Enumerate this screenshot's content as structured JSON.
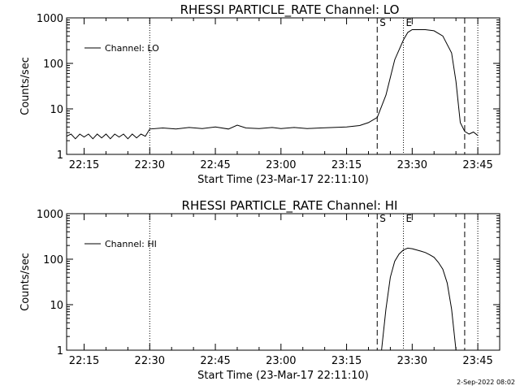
{
  "footer_date": "2-Sep-2022 08:02",
  "chart_data": [
    {
      "type": "line",
      "title": "RHESSI PARTICLE_RATE Channel: LO",
      "xlabel": "Start Time (23-Mar-17 22:11:10)",
      "ylabel": "Counts/sec",
      "y_scale": "log",
      "ylim": [
        1,
        1000
      ],
      "xlim": [
        "22:11",
        "23:50"
      ],
      "x_ticks": [
        "22:15",
        "22:30",
        "22:45",
        "23:00",
        "23:15",
        "23:30",
        "23:45"
      ],
      "y_ticks": [
        "1",
        "10",
        "100",
        "1000"
      ],
      "legend": "top-left",
      "series": [
        {
          "name": "Channel: LO",
          "points": [
            [
              "22:11",
              2.5
            ],
            [
              "22:12",
              2.8
            ],
            [
              "22:13",
              2.2
            ],
            [
              "22:14",
              2.8
            ],
            [
              "22:15",
              2.4
            ],
            [
              "22:16",
              2.8
            ],
            [
              "22:17",
              2.2
            ],
            [
              "22:18",
              2.8
            ],
            [
              "22:19",
              2.3
            ],
            [
              "22:20",
              2.8
            ],
            [
              "22:21",
              2.2
            ],
            [
              "22:22",
              2.8
            ],
            [
              "22:23",
              2.4
            ],
            [
              "22:24",
              2.8
            ],
            [
              "22:25",
              2.2
            ],
            [
              "22:26",
              2.8
            ],
            [
              "22:27",
              2.3
            ],
            [
              "22:28",
              2.8
            ],
            [
              "22:29",
              2.5
            ],
            [
              "22:30",
              3.6
            ],
            [
              "22:33",
              3.8
            ],
            [
              "22:36",
              3.6
            ],
            [
              "22:39",
              3.9
            ],
            [
              "22:42",
              3.7
            ],
            [
              "22:45",
              4.0
            ],
            [
              "22:48",
              3.6
            ],
            [
              "22:50",
              4.4
            ],
            [
              "22:52",
              3.8
            ],
            [
              "22:55",
              3.7
            ],
            [
              "22:58",
              3.9
            ],
            [
              "23:00",
              3.7
            ],
            [
              "23:03",
              3.9
            ],
            [
              "23:06",
              3.7
            ],
            [
              "23:09",
              3.8
            ],
            [
              "23:12",
              3.9
            ],
            [
              "23:15",
              4.0
            ],
            [
              "23:18",
              4.3
            ],
            [
              "23:20",
              5.0
            ],
            [
              "23:22",
              6.5
            ],
            [
              "23:24",
              20
            ],
            [
              "23:26",
              120
            ],
            [
              "23:28",
              330
            ],
            [
              "23:29",
              480
            ],
            [
              "23:30",
              550
            ],
            [
              "23:33",
              550
            ],
            [
              "23:35",
              520
            ],
            [
              "23:37",
              400
            ],
            [
              "23:39",
              170
            ],
            [
              "23:40",
              40
            ],
            [
              "23:41",
              5
            ],
            [
              "23:42",
              3.2
            ],
            [
              "23:43",
              2.8
            ],
            [
              "23:44",
              3.1
            ],
            [
              "23:45",
              2.6
            ]
          ]
        }
      ],
      "markers": [
        {
          "label": "S",
          "x": "23:22",
          "style": "dashed"
        },
        {
          "label": "E",
          "x": "23:28",
          "style": "dotted"
        },
        {
          "label": "",
          "x": "23:42",
          "style": "dashed"
        },
        {
          "label": "",
          "x": "22:30",
          "style": "dotted"
        },
        {
          "label": "",
          "x": "23:45",
          "style": "dotted"
        }
      ]
    },
    {
      "type": "line",
      "title": "RHESSI PARTICLE_RATE Channel: HI",
      "xlabel": "Start Time (23-Mar-17 22:11:10)",
      "ylabel": "Counts/sec",
      "y_scale": "log",
      "ylim": [
        1,
        1000
      ],
      "xlim": [
        "22:11",
        "23:50"
      ],
      "x_ticks": [
        "22:15",
        "22:30",
        "22:45",
        "23:00",
        "23:15",
        "23:30",
        "23:45"
      ],
      "y_ticks": [
        "1",
        "10",
        "100",
        "1000"
      ],
      "legend": "top-left",
      "series": [
        {
          "name": "Channel: HI",
          "points": [
            [
              "23:23",
              1.0
            ],
            [
              "23:24",
              8
            ],
            [
              "23:25",
              40
            ],
            [
              "23:26",
              90
            ],
            [
              "23:27",
              130
            ],
            [
              "23:28",
              160
            ],
            [
              "23:29",
              175
            ],
            [
              "23:30",
              170
            ],
            [
              "23:31",
              160
            ],
            [
              "23:32",
              150
            ],
            [
              "23:33",
              140
            ],
            [
              "23:34",
              125
            ],
            [
              "23:35",
              110
            ],
            [
              "23:36",
              85
            ],
            [
              "23:37",
              60
            ],
            [
              "23:38",
              30
            ],
            [
              "23:39",
              8
            ],
            [
              "23:40",
              1.0
            ]
          ]
        }
      ],
      "markers": [
        {
          "label": "S",
          "x": "23:22",
          "style": "dashed"
        },
        {
          "label": "E",
          "x": "23:28",
          "style": "dotted"
        },
        {
          "label": "",
          "x": "23:42",
          "style": "dashed"
        },
        {
          "label": "",
          "x": "22:30",
          "style": "dotted"
        },
        {
          "label": "",
          "x": "23:45",
          "style": "dotted"
        }
      ]
    }
  ]
}
